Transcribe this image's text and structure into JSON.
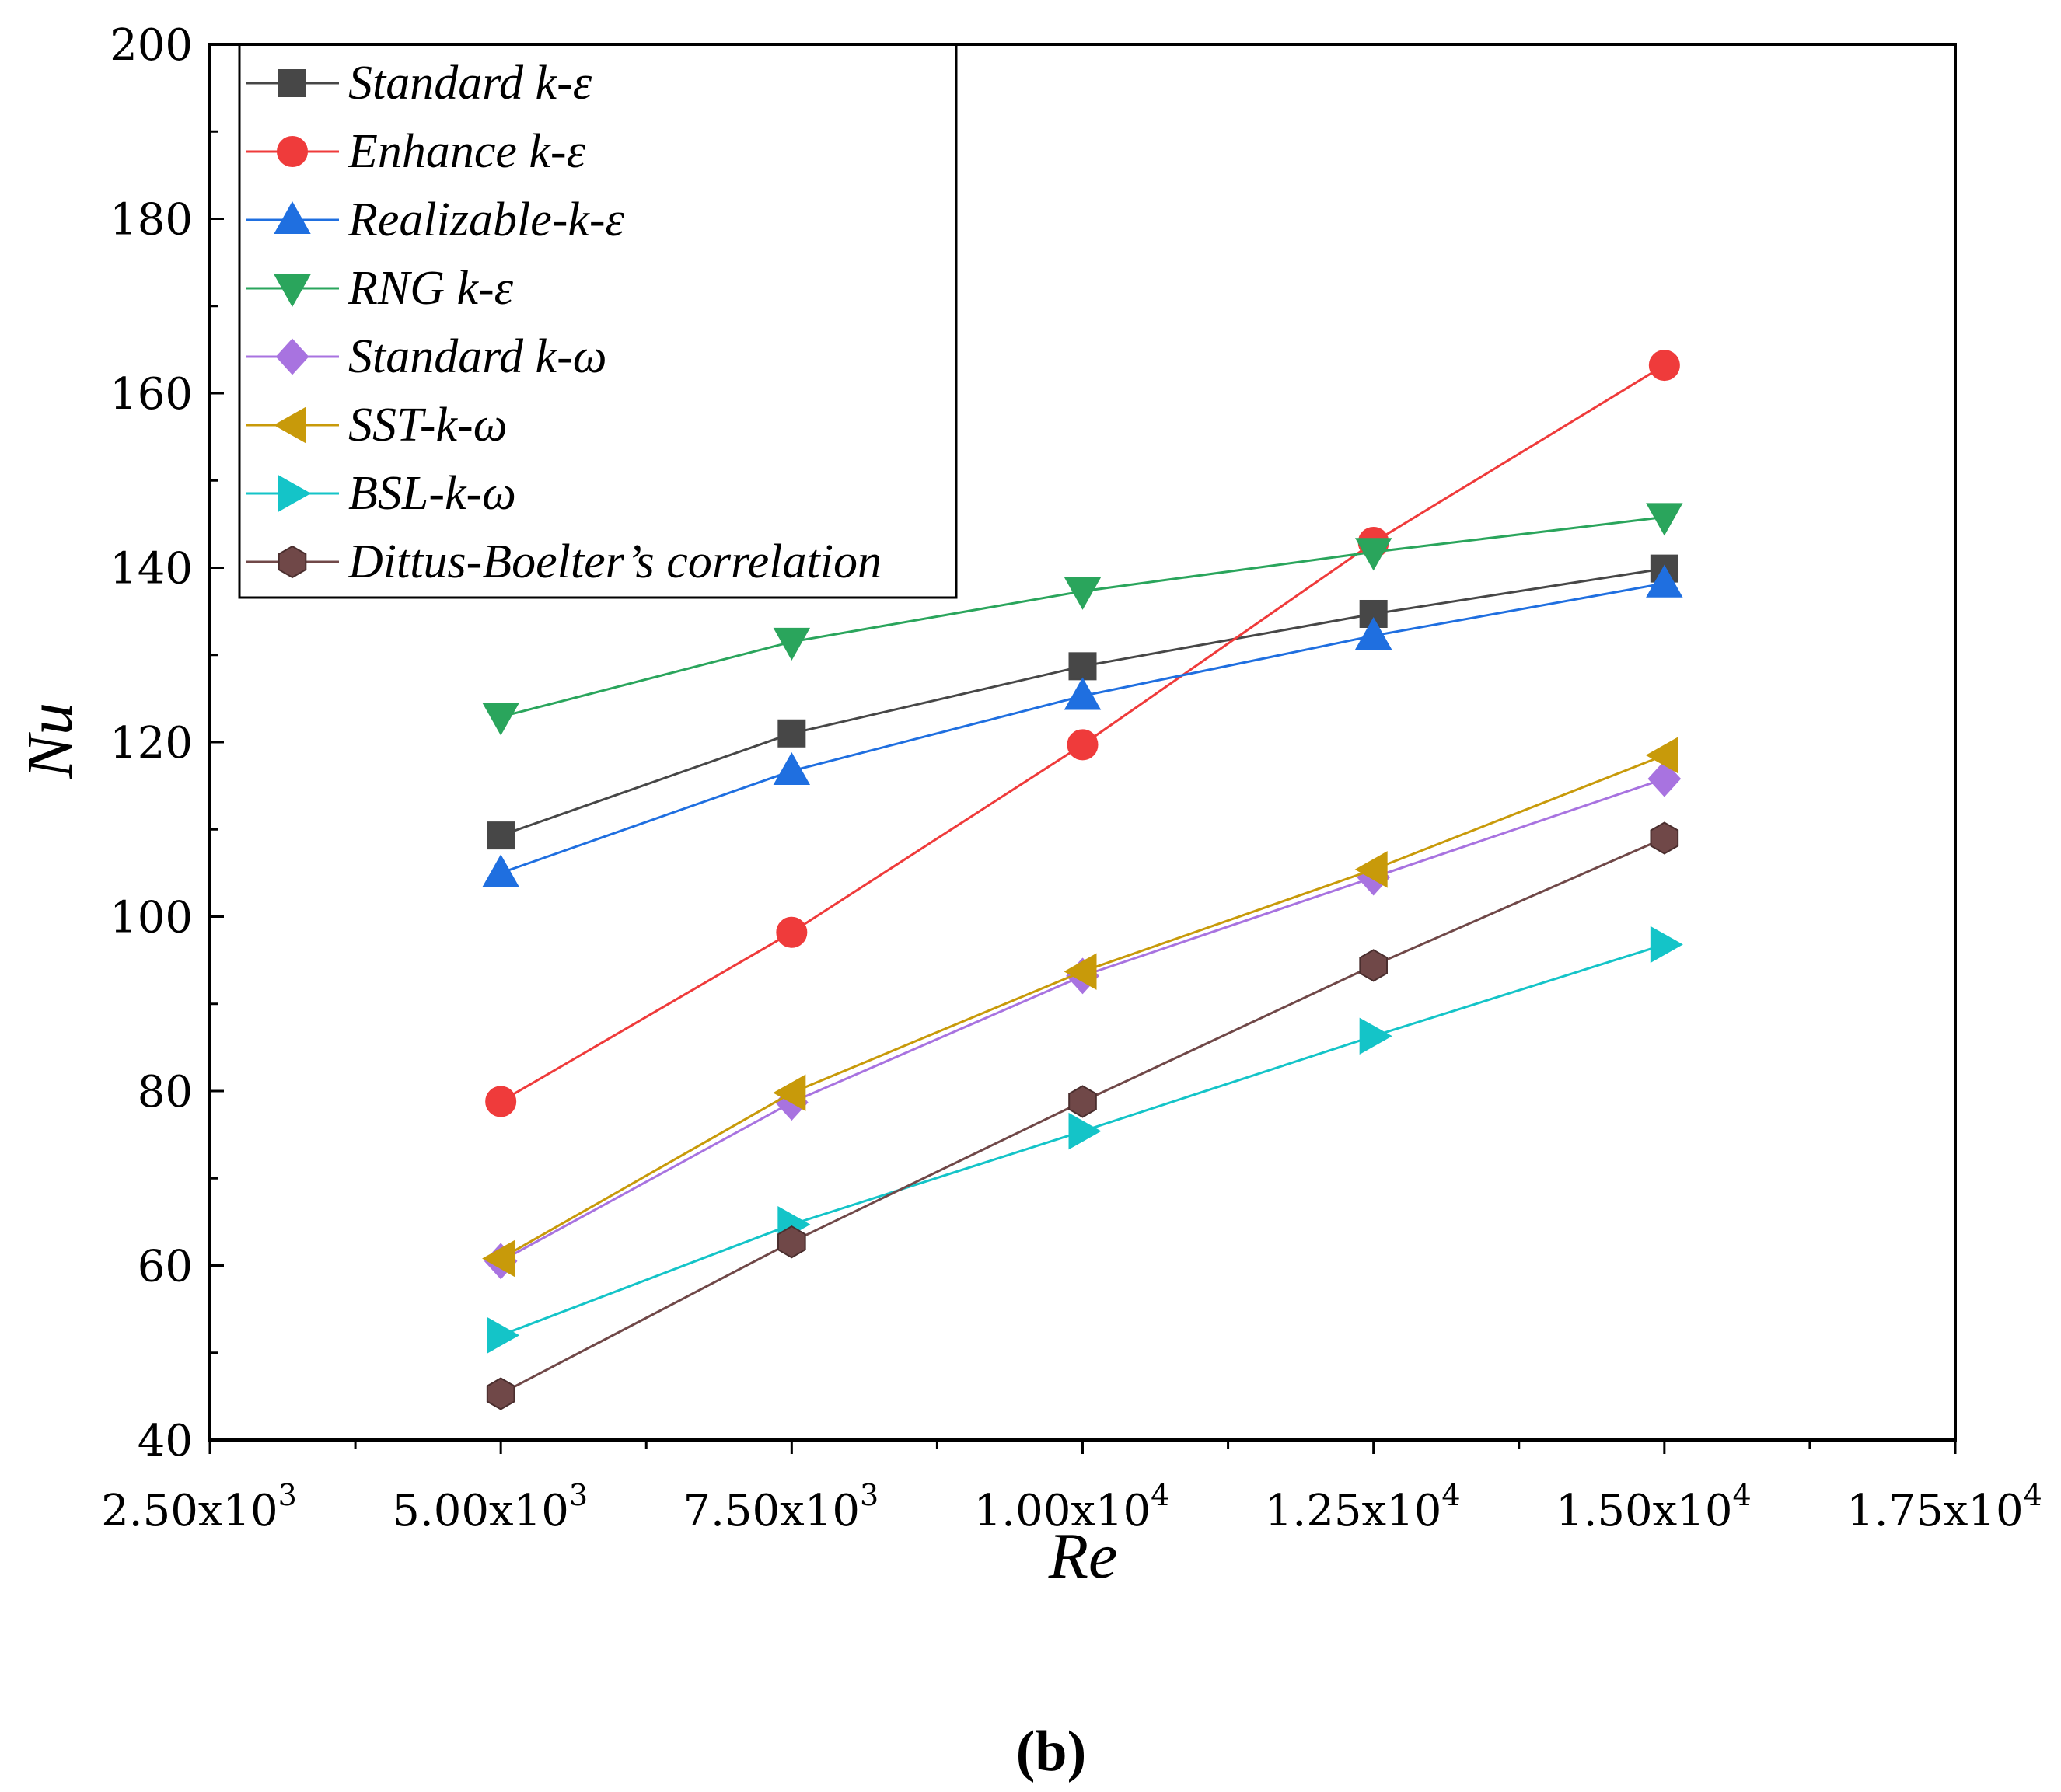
{
  "chart_data": {
    "type": "line",
    "panel_label": "(b)",
    "xlabel": "Re",
    "ylabel": "Nu",
    "xlim": [
      2500,
      17500
    ],
    "ylim": [
      40,
      200
    ],
    "x": [
      5000,
      7500,
      10000,
      12500,
      15000
    ],
    "xticks": [
      {
        "value": 2500,
        "mant": "2.50x10",
        "exp": "3"
      },
      {
        "value": 5000,
        "mant": "5.00x10",
        "exp": "3"
      },
      {
        "value": 7500,
        "mant": "7.50x10",
        "exp": "3"
      },
      {
        "value": 10000,
        "mant": "1.00x10",
        "exp": "4"
      },
      {
        "value": 12500,
        "mant": "1.25x10",
        "exp": "4"
      },
      {
        "value": 15000,
        "mant": "1.50x10",
        "exp": "4"
      },
      {
        "value": 17500,
        "mant": "1.75x10",
        "exp": "4"
      }
    ],
    "yticks": [
      40,
      60,
      80,
      100,
      120,
      140,
      160,
      180,
      200
    ],
    "legend_position": "top-left",
    "series": [
      {
        "name": "Standard k-ε",
        "color": "#474747",
        "marker": "square",
        "values": [
          109.3,
          121.0,
          128.7,
          134.7,
          139.9
        ]
      },
      {
        "name": "Enhance k-ε",
        "color": "#ef3b3b",
        "marker": "circle",
        "values": [
          78.8,
          98.2,
          119.7,
          142.9,
          163.2
        ]
      },
      {
        "name": "Realizable-k-ε",
        "color": "#1f6fe0",
        "marker": "triangle-up",
        "values": [
          105.0,
          116.7,
          125.3,
          132.2,
          138.2
        ]
      },
      {
        "name": "RNG k-ε",
        "color": "#2aa55c",
        "marker": "triangle-down",
        "values": [
          122.9,
          131.5,
          137.3,
          141.8,
          145.8
        ]
      },
      {
        "name": "Standard k-ω",
        "color": "#a873e0",
        "marker": "diamond",
        "values": [
          60.5,
          78.7,
          93.2,
          104.5,
          115.8
        ]
      },
      {
        "name": "SST-k-ω",
        "color": "#c89a0a",
        "marker": "triangle-left",
        "values": [
          60.8,
          79.8,
          93.7,
          105.4,
          118.5
        ]
      },
      {
        "name": "BSL-k-ω",
        "color": "#14c4c8",
        "marker": "triangle-right",
        "values": [
          52.0,
          64.7,
          75.4,
          86.3,
          96.8
        ]
      },
      {
        "name": "Dittus-Boelter’s correlation",
        "color": "#704848",
        "marker": "hexagon",
        "values": [
          45.3,
          62.7,
          78.8,
          94.4,
          109.0
        ]
      }
    ]
  }
}
